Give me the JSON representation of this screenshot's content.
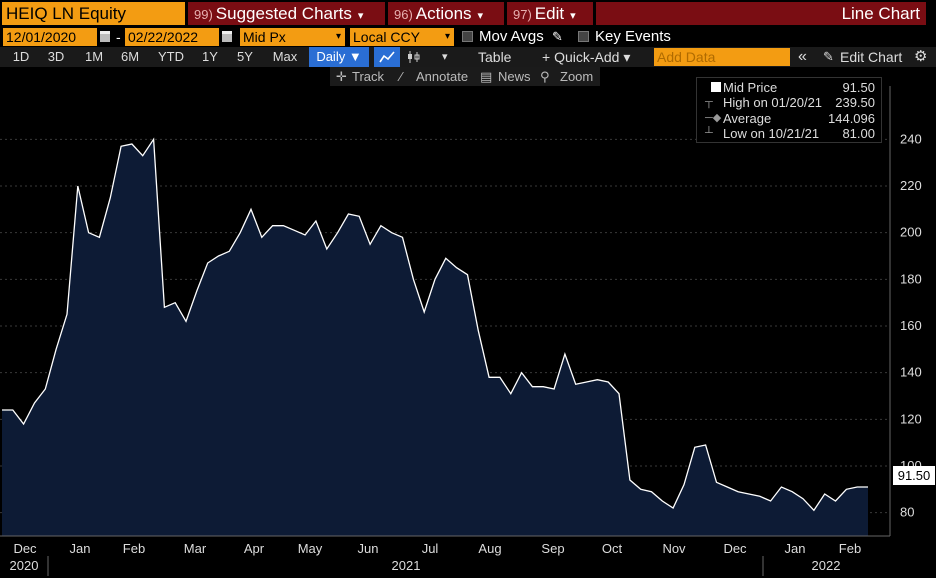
{
  "header": {
    "ticker": "HEIQ LN Equity",
    "menus": [
      {
        "num": "99)",
        "label": "Suggested Charts"
      },
      {
        "num": "96)",
        "label": "Actions"
      },
      {
        "num": "97)",
        "label": "Edit"
      }
    ],
    "chart_title": "Line Chart"
  },
  "settings": {
    "start_date": "12/01/2020",
    "date_sep": "-",
    "end_date": "02/22/2022",
    "field": "Mid Px",
    "currency": "Local CCY",
    "mov_avgs": "Mov Avgs",
    "key_events": "Key Events"
  },
  "toolbar": {
    "periods": [
      "1D",
      "3D",
      "1M",
      "6M",
      "YTD",
      "1Y",
      "5Y",
      "Max"
    ],
    "frequency": "Daily ▼",
    "table": "Table",
    "quick_add": "+ Quick-Add ▾",
    "add_data_placeholder": "Add Data",
    "collapse": "«",
    "edit_chart": "Edit Chart"
  },
  "chart_tools": {
    "track": "Track",
    "annotate": "Annotate",
    "news": "News",
    "zoom": "Zoom"
  },
  "legend": {
    "series_name": "Mid Price",
    "series_value": "91.50",
    "high_label": "High on 01/20/21",
    "high_value": "239.50",
    "avg_label": "Average",
    "avg_value": "144.096",
    "low_label": "Low on 10/21/21",
    "low_value": "81.00"
  },
  "last_price": "91.50",
  "colors": {
    "area_fill": "#0d1b35",
    "line": "#ffffff",
    "orange": "#f39c12",
    "menu_red": "#7a0d13",
    "active_blue": "#2a6ed4"
  },
  "chart_data": {
    "type": "area",
    "ylim": [
      70,
      250
    ],
    "yticks": [
      80,
      100,
      120,
      140,
      160,
      180,
      200,
      220,
      240
    ],
    "month_labels": [
      "Dec",
      "Jan",
      "Feb",
      "Mar",
      "Apr",
      "May",
      "Jun",
      "Jul",
      "Aug",
      "Sep",
      "Oct",
      "Nov",
      "Dec",
      "Jan",
      "Feb"
    ],
    "year_labels": [
      "2020",
      "2021",
      "2022"
    ],
    "series": [
      {
        "values": [
          124,
          124,
          118,
          127,
          133,
          150,
          165,
          220,
          200,
          198,
          215,
          237,
          238,
          233,
          240,
          168,
          170,
          162,
          175,
          187,
          190,
          192,
          200,
          210,
          198,
          203,
          203,
          201,
          199,
          205,
          193,
          200,
          208,
          207,
          195,
          203,
          200,
          198,
          180,
          166,
          180,
          189,
          185,
          182,
          158,
          138,
          138,
          131,
          140,
          134,
          134,
          133,
          148,
          135,
          136,
          137,
          136,
          131,
          94,
          90,
          89,
          85,
          82,
          92,
          108,
          109,
          93,
          91,
          89,
          88,
          87,
          85,
          91,
          89,
          86,
          81,
          88,
          85,
          90,
          91,
          91
        ]
      }
    ]
  }
}
